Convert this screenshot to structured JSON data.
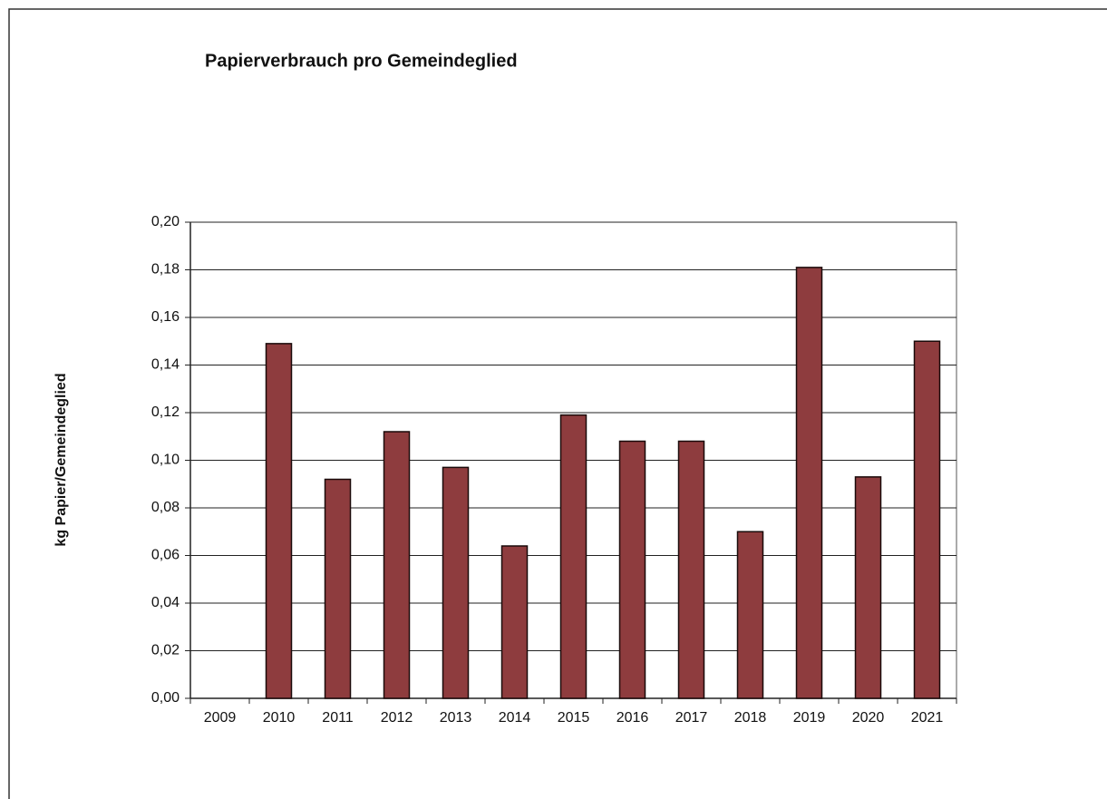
{
  "chart_data": {
    "type": "bar",
    "title": "Papierverbrauch pro Gemeindeglied",
    "y_label": "kg Papier/Gemeindeglied",
    "categories": [
      "2009",
      "2010",
      "2011",
      "2012",
      "2013",
      "2014",
      "2015",
      "2016",
      "2017",
      "2018",
      "2019",
      "2020",
      "2021"
    ],
    "values": [
      null,
      0.149,
      0.092,
      0.112,
      0.097,
      0.064,
      0.119,
      0.108,
      0.108,
      0.07,
      0.181,
      0.093,
      0.15
    ],
    "color": "#8e3c3e",
    "ylim": [
      0,
      0.2
    ],
    "yticks": [
      {
        "value": 0,
        "label": "0,00"
      },
      {
        "value": 0.02,
        "label": "0,02"
      },
      {
        "value": 0.04,
        "label": "0,04"
      },
      {
        "value": 0.06,
        "label": "0,06"
      },
      {
        "value": 0.08,
        "label": "0,08"
      },
      {
        "value": 0.1,
        "label": "0,10"
      },
      {
        "value": 0.12,
        "label": "0,12"
      },
      {
        "value": 0.14,
        "label": "0,14"
      },
      {
        "value": 0.16,
        "label": "0,16"
      },
      {
        "value": 0.18,
        "label": "0,18"
      },
      {
        "value": 0.2,
        "label": "0,20"
      }
    ],
    "grid": true
  }
}
